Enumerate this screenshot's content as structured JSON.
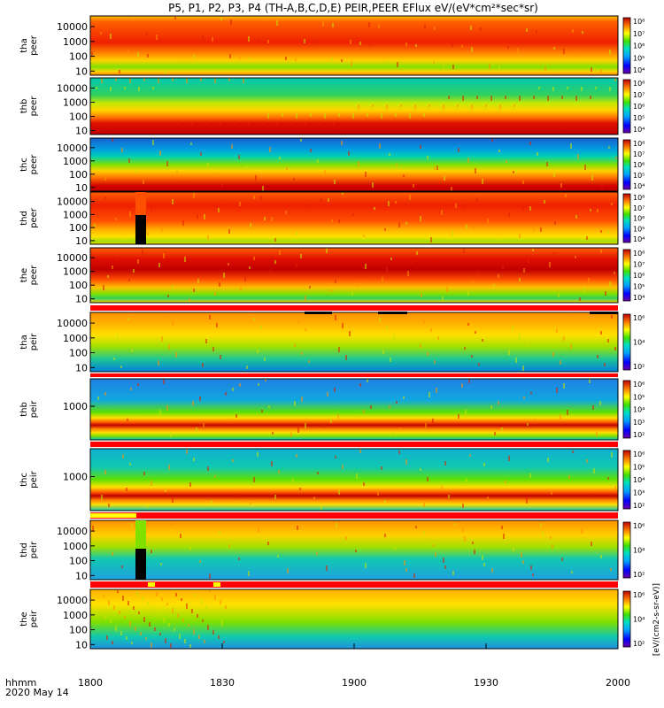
{
  "title": "P5, P1, P2, P3, P4 (TH-A,B,C,D,E) PEIR,PEER EFlux eV/(eV*cm²*sec*sr)",
  "time_axis": {
    "label_line1": "hhmm",
    "label_line2": "2020 May 14",
    "ticks": [
      "1800",
      "1830",
      "1900",
      "1930",
      "2000"
    ]
  },
  "colorbar_unit": "[eV/(cm2-s-sr-eV)]",
  "colors": {
    "background": "#ffffff",
    "frame": "#000000",
    "flag_red": "#ff0000",
    "flag_yellow": "#ffff00",
    "gap_black": "#000000"
  },
  "chart_data": [
    {
      "type": "heatmap",
      "probe": "tha",
      "species": "peer",
      "ylabel": [
        "tha",
        "peer"
      ],
      "yscale": "log",
      "y_ticks": [
        "10",
        "100",
        "1000",
        "10000"
      ],
      "x_range": [
        "18:00",
        "20:00"
      ],
      "colorbar_ticks": [
        "10⁴",
        "10⁵",
        "10⁶",
        "10⁷",
        "10⁸"
      ]
    },
    {
      "type": "heatmap",
      "probe": "thb",
      "species": "peer",
      "ylabel": [
        "thb",
        "peer"
      ],
      "yscale": "log",
      "y_ticks": [
        "10",
        "100",
        "1000",
        "10000"
      ],
      "x_range": [
        "18:00",
        "20:00"
      ],
      "colorbar_ticks": [
        "10⁴",
        "10⁵",
        "10⁶",
        "10⁷",
        "10⁸"
      ]
    },
    {
      "type": "heatmap",
      "probe": "thc",
      "species": "peer",
      "ylabel": [
        "thc",
        "peer"
      ],
      "yscale": "log",
      "y_ticks": [
        "10",
        "100",
        "1000",
        "10000"
      ],
      "x_range": [
        "18:00",
        "20:00"
      ],
      "colorbar_ticks": [
        "10⁴",
        "10⁵",
        "10⁶",
        "10⁷",
        "10⁸"
      ]
    },
    {
      "type": "heatmap",
      "probe": "thd",
      "species": "peer",
      "ylabel": [
        "thd",
        "peer"
      ],
      "yscale": "log",
      "y_ticks": [
        "10",
        "100",
        "1000",
        "10000"
      ],
      "x_range": [
        "18:00",
        "20:00"
      ],
      "colorbar_ticks": [
        "10⁴",
        "10⁵",
        "10⁶",
        "10⁷",
        "10⁸"
      ]
    },
    {
      "type": "heatmap",
      "probe": "the",
      "species": "peer",
      "ylabel": [
        "the",
        "peer"
      ],
      "yscale": "log",
      "y_ticks": [
        "10",
        "100",
        "1000",
        "10000"
      ],
      "x_range": [
        "18:00",
        "20:00"
      ],
      "colorbar_ticks": [
        "10⁴",
        "10⁵",
        "10⁶",
        "10⁷",
        "10⁸"
      ]
    },
    {
      "type": "heatmap",
      "probe": "tha",
      "species": "peir",
      "ylabel": [
        "tha",
        "peir"
      ],
      "yscale": "log",
      "y_ticks": [
        "10",
        "100",
        "1000",
        "10000"
      ],
      "x_range": [
        "18:00",
        "20:00"
      ],
      "colorbar_ticks": [
        "10²",
        "10⁴",
        "10⁶"
      ]
    },
    {
      "type": "heatmap",
      "probe": "thb",
      "species": "peir",
      "ylabel": [
        "thb",
        "peir"
      ],
      "yscale": "log",
      "y_ticks": [
        "1000"
      ],
      "x_range": [
        "18:00",
        "20:00"
      ],
      "colorbar_ticks": [
        "10²",
        "10³",
        "10⁴",
        "10⁵",
        "10⁶"
      ]
    },
    {
      "type": "heatmap",
      "probe": "thc",
      "species": "peir",
      "ylabel": [
        "thc",
        "peir"
      ],
      "yscale": "log",
      "y_ticks": [
        "1000"
      ],
      "x_range": [
        "18:00",
        "20:00"
      ],
      "colorbar_ticks": [
        "10²",
        "10³",
        "10⁴",
        "10⁵",
        "10⁶"
      ]
    },
    {
      "type": "heatmap",
      "probe": "thd",
      "species": "peir",
      "ylabel": [
        "thd",
        "peir"
      ],
      "yscale": "log",
      "y_ticks": [
        "10",
        "100",
        "1000",
        "10000"
      ],
      "x_range": [
        "18:00",
        "20:00"
      ],
      "colorbar_ticks": [
        "10²",
        "10⁴",
        "10⁶"
      ]
    },
    {
      "type": "heatmap",
      "probe": "the",
      "species": "peir",
      "ylabel": [
        "the",
        "peir"
      ],
      "yscale": "log",
      "y_ticks": [
        "10",
        "100",
        "1000",
        "10000"
      ],
      "x_range": [
        "18:00",
        "20:00"
      ],
      "colorbar_ticks": [
        "10²",
        "10⁴",
        "10⁶"
      ]
    }
  ]
}
